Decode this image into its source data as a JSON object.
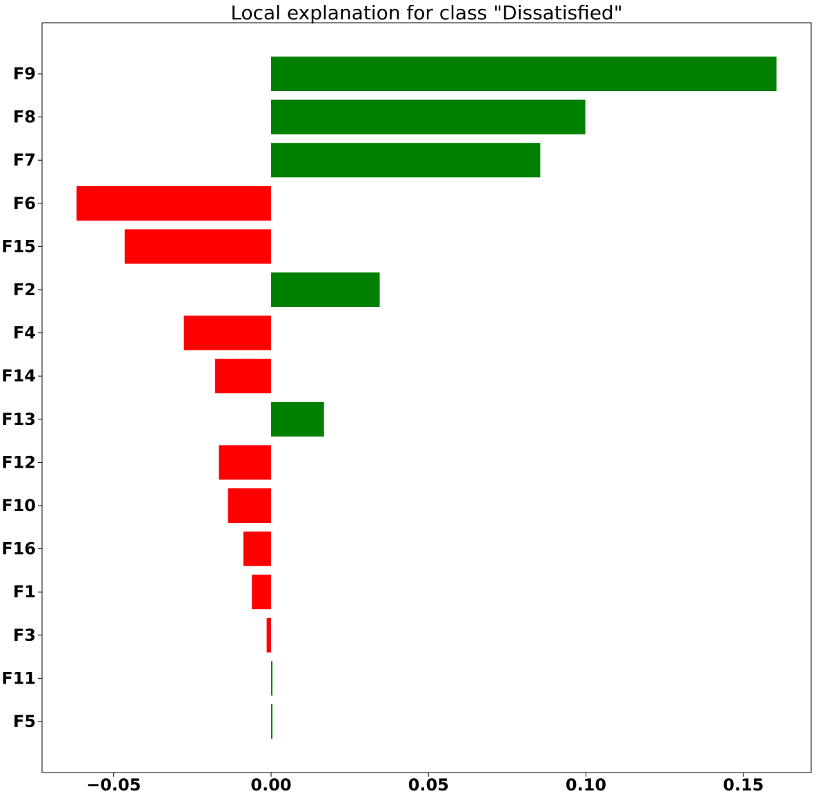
{
  "chart_data": {
    "type": "bar",
    "orientation": "horizontal",
    "title": "Local explanation for class \"Dissatisfied\"",
    "xlabel": "",
    "ylabel": "",
    "xlim": [
      -0.073,
      0.172
    ],
    "categories": [
      "F9",
      "F8",
      "F7",
      "F6",
      "F15",
      "F2",
      "F4",
      "F14",
      "F13",
      "F12",
      "F10",
      "F16",
      "F1",
      "F3",
      "F11",
      "F5"
    ],
    "values": [
      0.1605,
      0.0998,
      0.0855,
      -0.0618,
      -0.0465,
      0.0345,
      -0.0277,
      -0.0178,
      0.0168,
      -0.0166,
      -0.0137,
      -0.0088,
      -0.0061,
      -0.0014,
      0.0002,
      0.0002
    ],
    "xticks": [
      -0.05,
      0.0,
      0.05,
      0.1,
      0.15
    ],
    "xtick_labels": [
      "−0.05",
      "0.00",
      "0.05",
      "0.10",
      "0.15"
    ],
    "colors": {
      "positive": "#008000",
      "negative": "#ff0000"
    },
    "grid": false,
    "legend": "none"
  }
}
